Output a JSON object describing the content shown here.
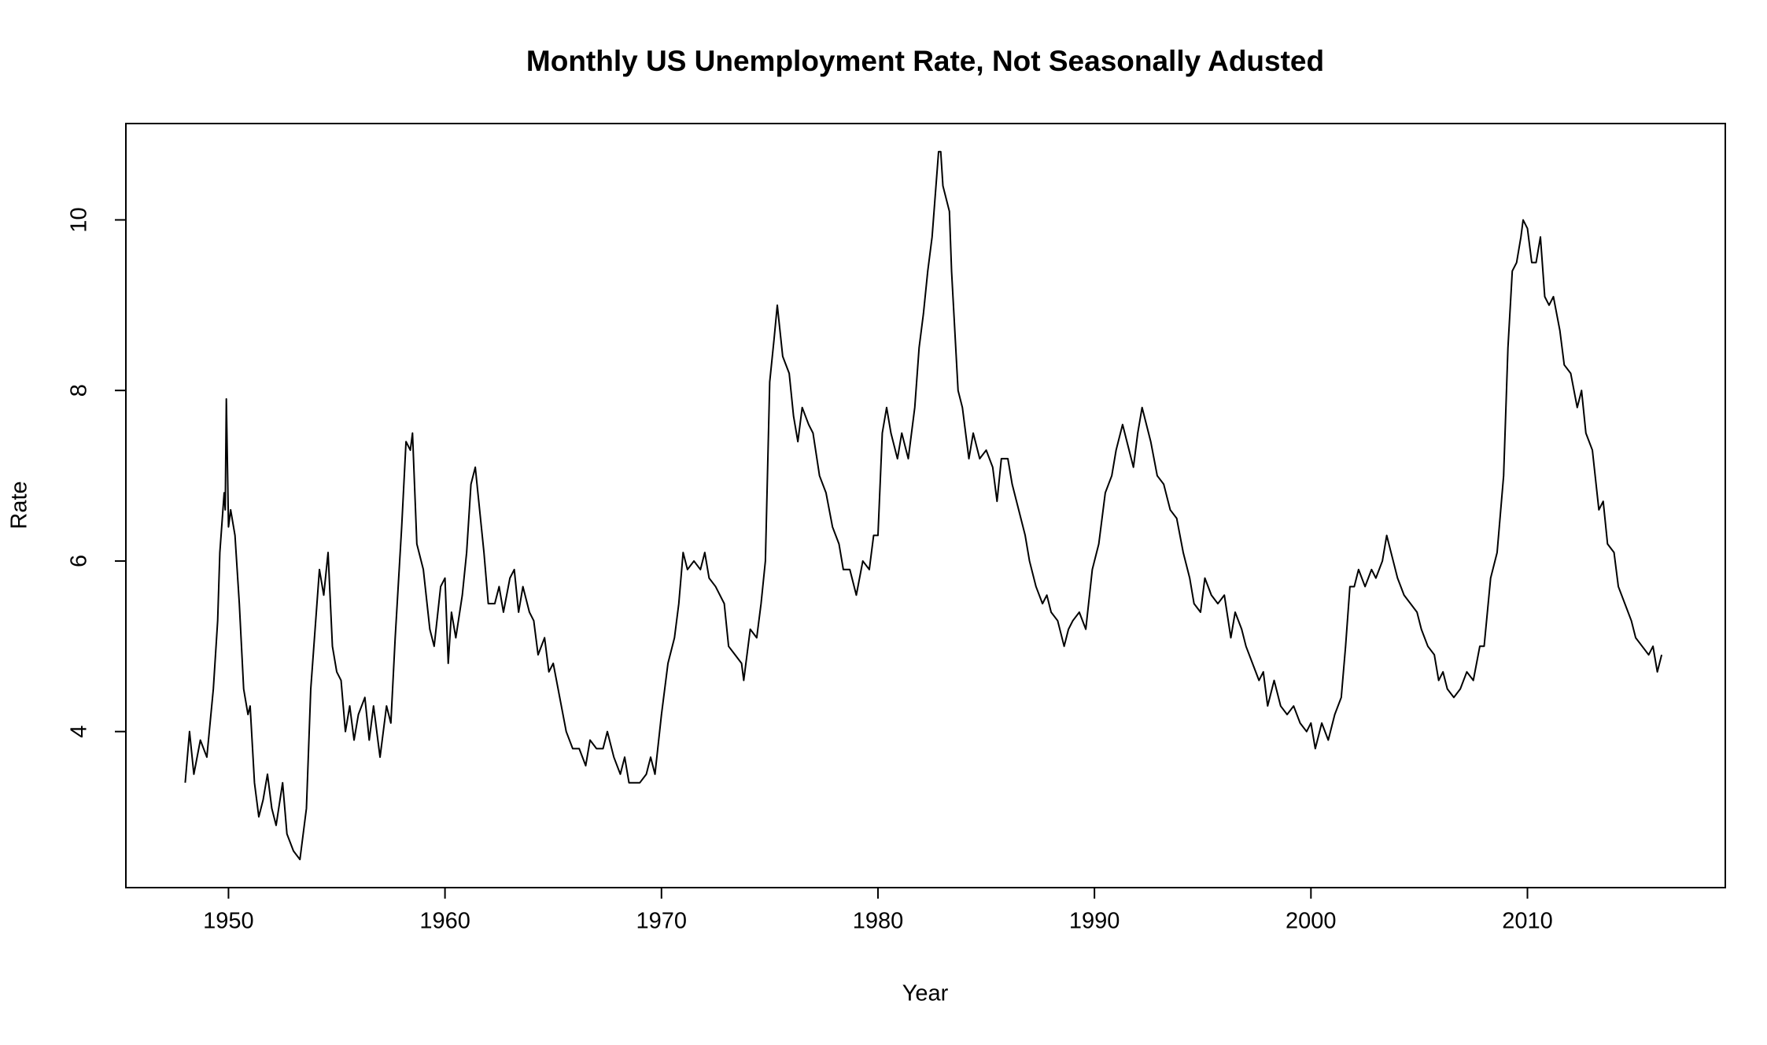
{
  "chart_data": {
    "type": "line",
    "title": "Monthly US Unemployment Rate, Not Seasonally Adusted",
    "x_label": "Year",
    "y_label": "Rate",
    "color": "#000000",
    "xlim": [
      1945.26,
      2019.14
    ],
    "xticks": [
      1950,
      1960,
      1970,
      1980,
      1990,
      2000,
      2010
    ],
    "ylim": [
      2.17,
      11.13
    ],
    "yticks": [
      4,
      6,
      8,
      10
    ],
    "grid": false,
    "x": [
      1948.0,
      1948.2,
      1948.4,
      1948.7,
      1949.0,
      1949.3,
      1949.5,
      1949.6,
      1949.8,
      1949.85,
      1949.9,
      1950.0,
      1950.1,
      1950.3,
      1950.5,
      1950.7,
      1950.9,
      1951.0,
      1951.2,
      1951.4,
      1951.6,
      1951.8,
      1952.0,
      1952.2,
      1952.5,
      1952.7,
      1953.0,
      1953.3,
      1953.6,
      1953.8,
      1954.0,
      1954.2,
      1954.4,
      1954.6,
      1954.8,
      1955.0,
      1955.2,
      1955.4,
      1955.6,
      1955.8,
      1956.0,
      1956.3,
      1956.5,
      1956.7,
      1957.0,
      1957.3,
      1957.5,
      1957.7,
      1958.0,
      1958.2,
      1958.4,
      1958.5,
      1958.7,
      1959.0,
      1959.3,
      1959.5,
      1959.8,
      1960.0,
      1960.15,
      1960.3,
      1960.5,
      1960.8,
      1961.0,
      1961.2,
      1961.4,
      1961.6,
      1961.8,
      1962.0,
      1962.3,
      1962.5,
      1962.7,
      1963.0,
      1963.2,
      1963.4,
      1963.6,
      1963.9,
      1964.1,
      1964.3,
      1964.6,
      1964.8,
      1965.0,
      1965.3,
      1965.6,
      1965.9,
      1966.2,
      1966.5,
      1966.7,
      1967.0,
      1967.3,
      1967.5,
      1967.8,
      1968.1,
      1968.3,
      1968.5,
      1969.0,
      1969.3,
      1969.5,
      1969.7,
      1970.0,
      1970.3,
      1970.6,
      1970.8,
      1971.0,
      1971.2,
      1971.5,
      1971.8,
      1972.0,
      1972.2,
      1972.5,
      1972.9,
      1973.1,
      1973.4,
      1973.7,
      1973.8,
      1974.1,
      1974.4,
      1974.6,
      1974.8,
      1975.0,
      1975.2,
      1975.35,
      1975.6,
      1975.9,
      1976.1,
      1976.3,
      1976.5,
      1976.8,
      1977.0,
      1977.3,
      1977.6,
      1977.9,
      1978.2,
      1978.4,
      1978.7,
      1979.0,
      1979.3,
      1979.6,
      1979.8,
      1980.0,
      1980.2,
      1980.4,
      1980.6,
      1980.9,
      1981.1,
      1981.4,
      1981.7,
      1981.9,
      1982.1,
      1982.3,
      1982.5,
      1982.8,
      1982.9,
      1983.0,
      1983.3,
      1983.4,
      1983.7,
      1983.9,
      1984.2,
      1984.4,
      1984.7,
      1985.0,
      1985.3,
      1985.5,
      1985.7,
      1986.0,
      1986.2,
      1986.5,
      1986.8,
      1987.0,
      1987.3,
      1987.6,
      1987.8,
      1988.0,
      1988.3,
      1988.6,
      1988.8,
      1989.0,
      1989.3,
      1989.6,
      1989.9,
      1990.2,
      1990.5,
      1990.8,
      1991.0,
      1991.3,
      1991.5,
      1991.8,
      1992.0,
      1992.2,
      1992.4,
      1992.6,
      1992.9,
      1993.2,
      1993.5,
      1993.8,
      1994.1,
      1994.4,
      1994.6,
      1994.9,
      1995.1,
      1995.4,
      1995.7,
      1996.0,
      1996.3,
      1996.5,
      1996.8,
      1997.0,
      1997.3,
      1997.6,
      1997.8,
      1998.0,
      1998.3,
      1998.6,
      1998.9,
      1999.2,
      1999.5,
      1999.8,
      2000.0,
      2000.2,
      2000.5,
      2000.8,
      2001.1,
      2001.4,
      2001.6,
      2001.8,
      2002.0,
      2002.2,
      2002.5,
      2002.8,
      2003.0,
      2003.3,
      2003.5,
      2003.8,
      2004.0,
      2004.3,
      2004.6,
      2004.9,
      2005.1,
      2005.4,
      2005.7,
      2005.9,
      2006.1,
      2006.3,
      2006.6,
      2006.9,
      2007.2,
      2007.5,
      2007.8,
      2008.0,
      2008.3,
      2008.6,
      2008.9,
      2009.1,
      2009.3,
      2009.5,
      2009.7,
      2009.8,
      2010.0,
      2010.2,
      2010.4,
      2010.6,
      2010.8,
      2011.0,
      2011.2,
      2011.5,
      2011.7,
      2012.0,
      2012.3,
      2012.5,
      2012.7,
      2013.0,
      2013.3,
      2013.5,
      2013.7,
      2014.0,
      2014.2,
      2014.5,
      2014.8,
      2015.0,
      2015.3,
      2015.6,
      2015.8,
      2016.0,
      2016.2
    ],
    "values": [
      3.4,
      4.0,
      3.5,
      3.9,
      3.7,
      4.5,
      5.3,
      6.1,
      6.8,
      6.6,
      7.9,
      6.4,
      6.6,
      6.3,
      5.5,
      4.5,
      4.2,
      4.3,
      3.4,
      3.0,
      3.2,
      3.5,
      3.1,
      2.9,
      3.4,
      2.8,
      2.6,
      2.5,
      3.1,
      4.5,
      5.2,
      5.9,
      5.6,
      6.1,
      5.0,
      4.7,
      4.6,
      4.0,
      4.3,
      3.9,
      4.2,
      4.4,
      3.9,
      4.3,
      3.7,
      4.3,
      4.1,
      5.1,
      6.4,
      7.4,
      7.3,
      7.5,
      6.2,
      5.9,
      5.2,
      5.0,
      5.7,
      5.8,
      4.8,
      5.4,
      5.1,
      5.6,
      6.1,
      6.9,
      7.1,
      6.6,
      6.1,
      5.5,
      5.5,
      5.7,
      5.4,
      5.8,
      5.9,
      5.4,
      5.7,
      5.4,
      5.3,
      4.9,
      5.1,
      4.7,
      4.8,
      4.4,
      4.0,
      3.8,
      3.8,
      3.6,
      3.9,
      3.8,
      3.8,
      4.0,
      3.7,
      3.5,
      3.7,
      3.4,
      3.4,
      3.5,
      3.7,
      3.5,
      4.2,
      4.8,
      5.1,
      5.5,
      6.1,
      5.9,
      6.0,
      5.9,
      6.1,
      5.8,
      5.7,
      5.5,
      5.0,
      4.9,
      4.8,
      4.6,
      5.2,
      5.1,
      5.5,
      6.0,
      8.1,
      8.6,
      9.0,
      8.4,
      8.2,
      7.7,
      7.4,
      7.8,
      7.6,
      7.5,
      7.0,
      6.8,
      6.4,
      6.2,
      5.9,
      5.9,
      5.6,
      6.0,
      5.9,
      6.3,
      6.3,
      7.5,
      7.8,
      7.5,
      7.2,
      7.5,
      7.2,
      7.8,
      8.5,
      8.9,
      9.4,
      9.8,
      10.8,
      10.8,
      10.4,
      10.1,
      9.4,
      8.0,
      7.8,
      7.2,
      7.5,
      7.2,
      7.3,
      7.1,
      6.7,
      7.2,
      7.2,
      6.9,
      6.6,
      6.3,
      6.0,
      5.7,
      5.5,
      5.6,
      5.4,
      5.3,
      5.0,
      5.2,
      5.3,
      5.4,
      5.2,
      5.9,
      6.2,
      6.8,
      7.0,
      7.3,
      7.6,
      7.4,
      7.1,
      7.5,
      7.8,
      7.6,
      7.4,
      7.0,
      6.9,
      6.6,
      6.5,
      6.1,
      5.8,
      5.5,
      5.4,
      5.8,
      5.6,
      5.5,
      5.6,
      5.1,
      5.4,
      5.2,
      5.0,
      4.8,
      4.6,
      4.7,
      4.3,
      4.6,
      4.3,
      4.2,
      4.3,
      4.1,
      4.0,
      4.1,
      3.8,
      4.1,
      3.9,
      4.2,
      4.4,
      5.0,
      5.7,
      5.7,
      5.9,
      5.7,
      5.9,
      5.8,
      6.0,
      6.3,
      6.0,
      5.8,
      5.6,
      5.5,
      5.4,
      5.2,
      5.0,
      4.9,
      4.6,
      4.7,
      4.5,
      4.4,
      4.5,
      4.7,
      4.6,
      5.0,
      5.0,
      5.8,
      6.1,
      7.0,
      8.5,
      9.4,
      9.5,
      9.8,
      10.0,
      9.9,
      9.5,
      9.5,
      9.8,
      9.1,
      9.0,
      9.1,
      8.7,
      8.3,
      8.2,
      7.8,
      8.0,
      7.5,
      7.3,
      6.6,
      6.7,
      6.2,
      6.1,
      5.7,
      5.5,
      5.3,
      5.1,
      5.0,
      4.9,
      5.0,
      4.7,
      4.9
    ]
  }
}
